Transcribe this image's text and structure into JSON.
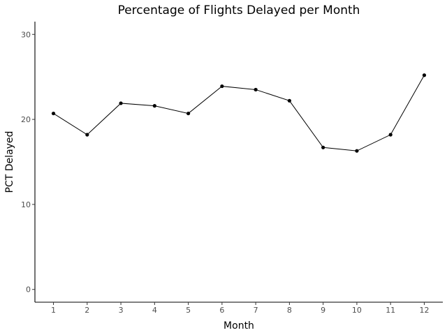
{
  "chart_data": {
    "type": "line",
    "title": "Percentage of Flights Delayed per Month",
    "xlabel": "Month",
    "ylabel": "PCT Delayed",
    "x": [
      1,
      2,
      3,
      4,
      5,
      6,
      7,
      8,
      9,
      10,
      11,
      12
    ],
    "x_tick_labels": [
      "1",
      "2",
      "3",
      "4",
      "5",
      "6",
      "7",
      "8",
      "9",
      "10",
      "11",
      "12"
    ],
    "y": [
      20.7,
      18.2,
      21.9,
      21.6,
      20.7,
      23.9,
      23.5,
      22.2,
      16.7,
      16.3,
      18.2,
      25.2
    ],
    "y_ticks": [
      0,
      10,
      20,
      30
    ],
    "y_tick_labels": [
      "0",
      "10",
      "20",
      "30"
    ],
    "xlim": [
      0.45,
      12.55
    ],
    "ylim": [
      -1.5,
      31.5
    ],
    "grid": false,
    "legend": "none",
    "line_color": "#000000",
    "point_color": "#000000"
  }
}
